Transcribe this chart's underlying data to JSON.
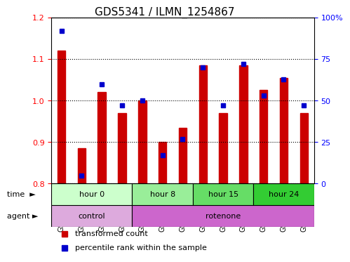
{
  "title": "GDS5341 / ILMN_1254867",
  "samples": [
    "GSM567521",
    "GSM567522",
    "GSM567523",
    "GSM567524",
    "GSM567532",
    "GSM567533",
    "GSM567534",
    "GSM567535",
    "GSM567536",
    "GSM567537",
    "GSM567538",
    "GSM567539",
    "GSM567540"
  ],
  "red_values": [
    1.12,
    0.885,
    1.02,
    0.97,
    1.0,
    0.9,
    0.935,
    1.085,
    0.97,
    1.085,
    1.025,
    1.055,
    0.97
  ],
  "blue_values": [
    92,
    5,
    60,
    47,
    50,
    17,
    27,
    70,
    47,
    72,
    53,
    63,
    47
  ],
  "ylim_left": [
    0.8,
    1.2
  ],
  "ylim_right": [
    0,
    100
  ],
  "yticks_left": [
    0.8,
    0.9,
    1.0,
    1.1,
    1.2
  ],
  "yticks_right": [
    0,
    25,
    50,
    75,
    100
  ],
  "ytick_labels_right": [
    "0",
    "25",
    "50",
    "75",
    "100%"
  ],
  "bar_color": "#cc0000",
  "dot_color": "#0000cc",
  "bar_bottom": 0.8,
  "time_groups": [
    {
      "label": "hour 0",
      "start": 0,
      "end": 4,
      "color": "#ccffcc"
    },
    {
      "label": "hour 8",
      "start": 4,
      "end": 7,
      "color": "#99ee99"
    },
    {
      "label": "hour 15",
      "start": 7,
      "end": 10,
      "color": "#66dd66"
    },
    {
      "label": "hour 24",
      "start": 10,
      "end": 13,
      "color": "#33cc33"
    }
  ],
  "agent_groups": [
    {
      "label": "control",
      "start": 0,
      "end": 4,
      "color": "#ddaadd"
    },
    {
      "label": "rotenone",
      "start": 4,
      "end": 13,
      "color": "#cc66cc"
    }
  ],
  "legend_red": "transformed count",
  "legend_blue": "percentile rank within the sample",
  "title_fontsize": 11,
  "tick_fontsize": 8,
  "label_fontsize": 9
}
